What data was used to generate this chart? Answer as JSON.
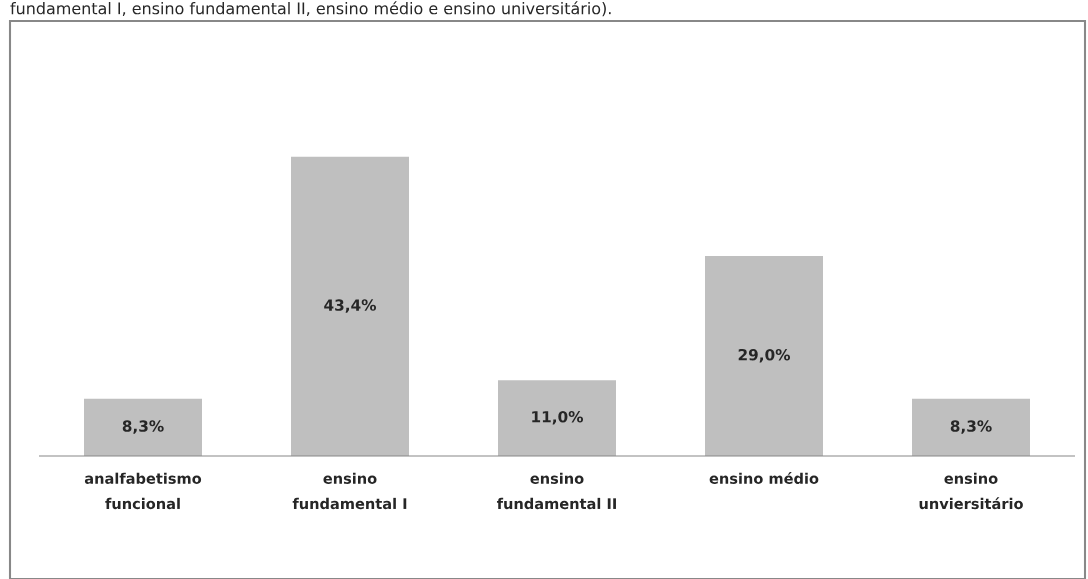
{
  "chart_data": {
    "type": "bar",
    "categories": [
      "analfabetismo\nfuncional",
      "ensino\nfundamental I",
      "ensino\nfundamental II",
      "ensino médio",
      "ensino\nunviersitário"
    ],
    "values": [
      8.3,
      43.4,
      11.0,
      29.0,
      8.3
    ],
    "value_labels": [
      "8,3%",
      "43,4%",
      "11,0%",
      "29,0%",
      "8,3%"
    ],
    "color": "#bfbfbf",
    "grid": false,
    "legend": false,
    "annotations": [
      "fundamental I, ensino fundamental II, ensino médio e ensino universitário)."
    ]
  }
}
